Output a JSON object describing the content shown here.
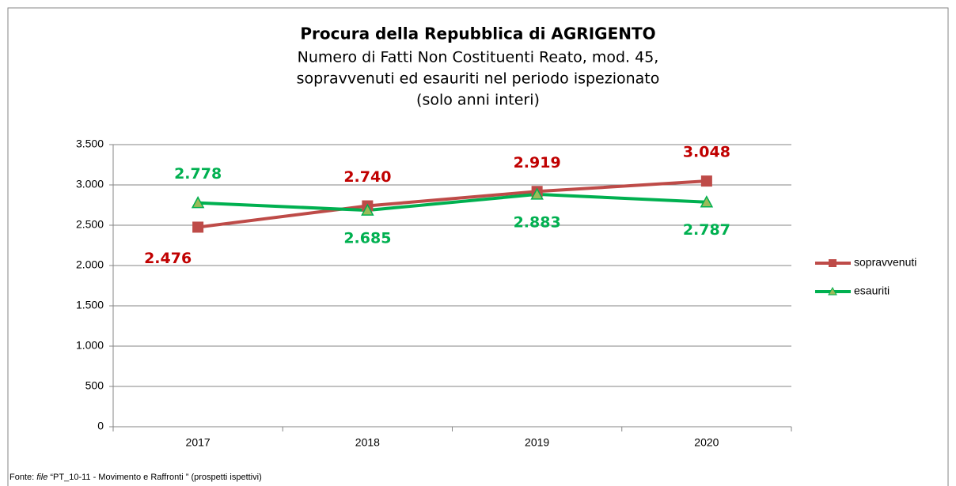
{
  "chart_data": {
    "type": "line",
    "title": "Procura della Repubblica di AGRIGENTO",
    "subtitle": [
      "Numero di Fatti Non Costituenti Reato, mod. 45,",
      "sopravvenuti ed esauriti nel periodo ispezionato",
      "(solo anni interi)"
    ],
    "categories": [
      "2017",
      "2018",
      "2019",
      "2020"
    ],
    "series": [
      {
        "name": "sopravvenuti",
        "color": "#be4b48",
        "label_color": "#c00000",
        "marker": "square",
        "values": [
          2476,
          2740,
          2919,
          3048
        ],
        "value_labels": [
          "2.476",
          "2.740",
          "2.919",
          "3.048"
        ]
      },
      {
        "name": "esauriti",
        "color": "#00b050",
        "label_color": "#00b050",
        "marker": "triangle",
        "marker_fill": "#9bbb59",
        "values": [
          2778,
          2685,
          2883,
          2787
        ],
        "value_labels": [
          "2.778",
          "2.685",
          "2.883",
          "2.787"
        ]
      }
    ],
    "ylim": [
      0,
      3500
    ],
    "yticks": [
      0,
      500,
      {
        "value": 1000,
        "label": "1.000"
      },
      {
        "value": 1500,
        "label": "1.500"
      },
      {
        "value": 2000,
        "label": "2.000"
      },
      {
        "value": 2500,
        "label": "2.500"
      },
      {
        "value": 3000,
        "label": "3.000"
      },
      {
        "value": 3500,
        "label": "3.500"
      }
    ],
    "grid": true,
    "legend": "right",
    "source": [
      "Fonte: ",
      "file",
      " “PT_10-11 - Movimento e Raffronti ” (prospetti ispettivi)"
    ]
  }
}
